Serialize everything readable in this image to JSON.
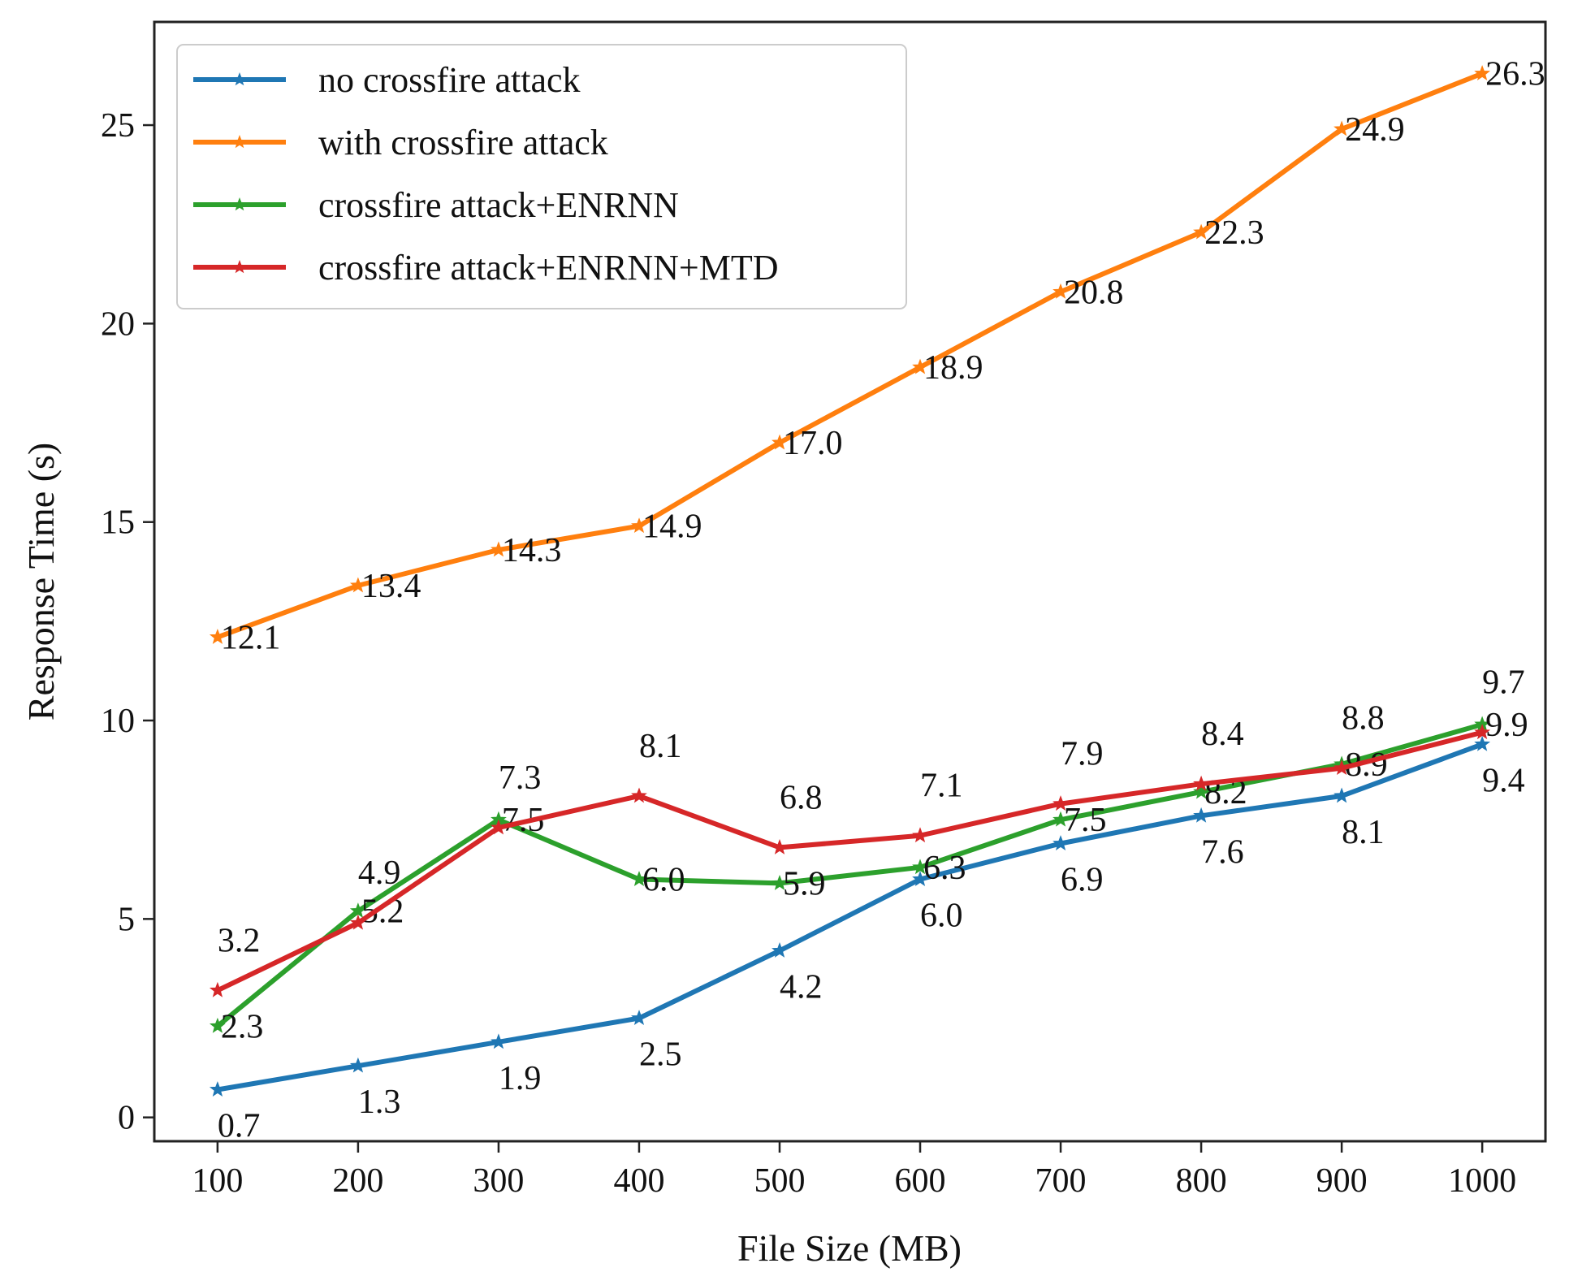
{
  "chart_data": {
    "type": "line",
    "title": "",
    "xlabel": "File Size (MB)",
    "ylabel": "Response Time (s)",
    "x": [
      100,
      200,
      300,
      400,
      500,
      600,
      700,
      800,
      900,
      1000
    ],
    "x_tick_labels": [
      "100",
      "200",
      "300",
      "400",
      "500",
      "600",
      "700",
      "800",
      "900",
      "1000"
    ],
    "xlim": [
      55,
      1045
    ],
    "ylim": [
      -0.6,
      27.6
    ],
    "y_ticks": [
      0,
      5,
      10,
      15,
      20,
      25
    ],
    "y_tick_labels": [
      "0",
      "5",
      "10",
      "15",
      "20",
      "25"
    ],
    "grid": false,
    "legend_position": "top-left",
    "marker": "star",
    "series": [
      {
        "name": "no crossfire attack",
        "color": "#1f77b4",
        "values": [
          0.7,
          1.3,
          1.9,
          2.5,
          4.2,
          6.0,
          6.9,
          7.6,
          8.1,
          9.4
        ],
        "labels": [
          "0.7",
          "1.3",
          "1.9",
          "2.5",
          "4.2",
          "6.0",
          "6.9",
          "7.6",
          "8.1",
          "9.4"
        ],
        "label_placement": "below"
      },
      {
        "name": "with crossfire attack",
        "color": "#ff7f0e",
        "values": [
          12.1,
          13.4,
          14.3,
          14.9,
          17.0,
          18.9,
          20.8,
          22.3,
          24.9,
          26.3
        ],
        "labels": [
          "12.1",
          "13.4",
          "14.3",
          "14.9",
          "17.0",
          "18.9",
          "20.8",
          "22.3",
          "24.9",
          "26.3"
        ],
        "label_placement": "right"
      },
      {
        "name": "crossfire attack+ENRNN",
        "color": "#2ca02c",
        "values": [
          2.3,
          5.2,
          7.5,
          6.0,
          5.9,
          6.3,
          7.5,
          8.2,
          8.9,
          9.9
        ],
        "labels": [
          "2.3",
          "5.2",
          "7.5",
          "6.0",
          "5.9",
          "6.3",
          "7.5",
          "8.2",
          "8.9",
          "9.9"
        ],
        "label_placement": "right"
      },
      {
        "name": "crossfire attack+ENRNN+MTD",
        "color": "#d62728",
        "values": [
          3.2,
          4.9,
          7.3,
          8.1,
          6.8,
          7.1,
          7.9,
          8.4,
          8.8,
          9.7
        ],
        "labels": [
          "3.2",
          "4.9",
          "7.3",
          "8.1",
          "6.8",
          "7.1",
          "7.9",
          "8.4",
          "8.8",
          "9.7"
        ],
        "label_placement": "above"
      }
    ]
  }
}
